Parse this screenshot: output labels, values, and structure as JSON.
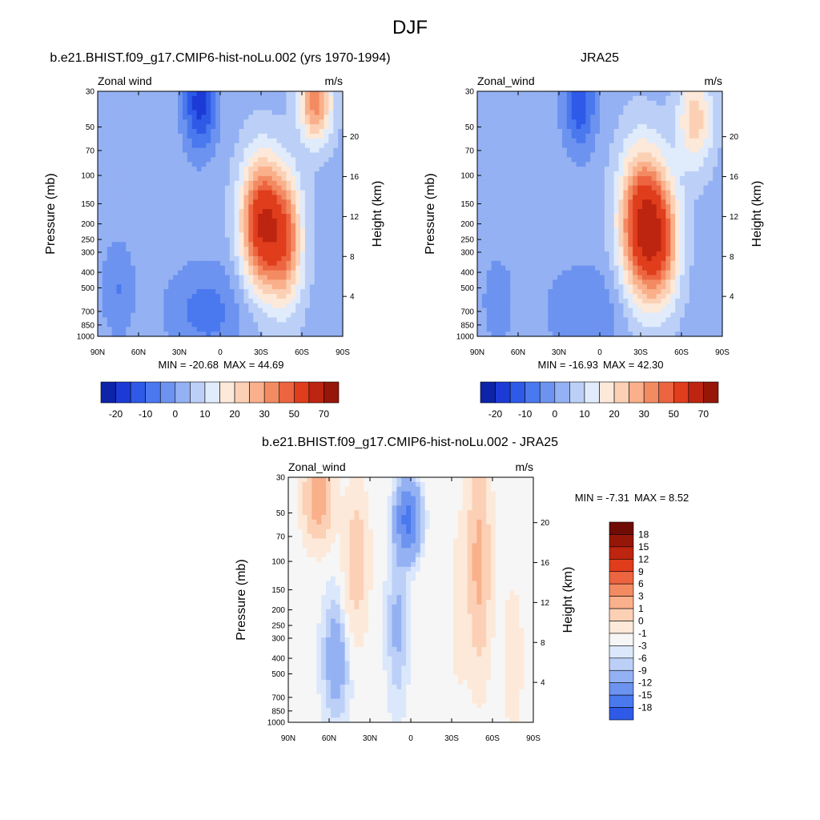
{
  "figure": {
    "title": "DJF"
  },
  "colors": {
    "abs_palette": [
      "#0a0a78",
      "#0d23a8",
      "#1c3bd6",
      "#2f5ae8",
      "#4a78ee",
      "#6d93f0",
      "#94b1f3",
      "#bcd0f7",
      "#e0ebfb",
      "#fde9d9",
      "#fbd0b5",
      "#f9b08b",
      "#f38b62",
      "#ec6540",
      "#df3d1c",
      "#bd2510",
      "#961608",
      "#6e0c05"
    ],
    "diff_palette": [
      "#0a0a78",
      "#0d23a8",
      "#1c3bd6",
      "#2f5ae8",
      "#4a78ee",
      "#6d93f0",
      "#94b1f3",
      "#bcd0f7",
      "#dbe7fb",
      "#f6f6f6",
      "#fde9d9",
      "#fbd0b5",
      "#f9b08b",
      "#f38b62",
      "#ec6540",
      "#df3d1c",
      "#bd2510",
      "#961608",
      "#6e0c05"
    ]
  },
  "chart_data": [
    {
      "type": "heatmap",
      "title": "b.e21.BHIST.f09_g17.CMIP6-hist-noLu.002 (yrs 1970-1994)",
      "variable": "Zonal wind",
      "units": "m/s",
      "xlabel": "",
      "ylabel": "Pressure (mb)",
      "ylabel_right": "Height (km)",
      "x_ticks": [
        "90N",
        "60N",
        "30N",
        "0",
        "30S",
        "60S",
        "90S"
      ],
      "y_ticks": [
        30,
        50,
        70,
        100,
        150,
        200,
        250,
        300,
        400,
        500,
        700,
        850,
        1000
      ],
      "y_ticks_right": [
        4,
        8,
        12,
        16,
        20
      ],
      "y_scale": "log",
      "min_label": "MIN = -20.68",
      "max_label": "MAX =  44.69",
      "min": -20.68,
      "max": 44.69,
      "colorbar": {
        "orientation": "horizontal",
        "tick_labels": [
          "-20",
          "-10",
          "0",
          "10",
          "20",
          "30",
          "50",
          "70"
        ]
      },
      "levels": [
        -25,
        -20,
        -15,
        -10,
        -5,
        0,
        5,
        10,
        15,
        20,
        25,
        30,
        35,
        40,
        50,
        60,
        70
      ],
      "features": [
        {
          "lat": -30,
          "p": 200,
          "value": 44.69,
          "width_lat": 15,
          "width_logp": 0.4
        },
        {
          "lat": -48,
          "p": 250,
          "value": 30,
          "width_lat": 13,
          "width_logp": 0.4
        },
        {
          "lat": -70,
          "p": 35,
          "value": 30,
          "width_lat": 12,
          "width_logp": 0.25
        },
        {
          "lat": 15,
          "p": 35,
          "value": -20.68,
          "width_lat": 12,
          "width_logp": 0.3
        },
        {
          "lat": 10,
          "p": 700,
          "value": -10,
          "width_lat": 30,
          "width_logp": 0.3
        },
        {
          "lat": 75,
          "p": 500,
          "value": -8,
          "width_lat": 12,
          "width_logp": 0.3
        }
      ]
    },
    {
      "type": "heatmap",
      "title": "JRA25",
      "variable": "Zonal_wind",
      "units": "m/s",
      "xlabel": "",
      "ylabel": "Pressure (mb)",
      "ylabel_right": "Height (km)",
      "x_ticks": [
        "90N",
        "60N",
        "30N",
        "0",
        "30S",
        "60S",
        "90S"
      ],
      "y_ticks": [
        30,
        50,
        70,
        100,
        150,
        200,
        250,
        300,
        400,
        500,
        700,
        850,
        1000
      ],
      "y_ticks_right": [
        4,
        8,
        12,
        16,
        20
      ],
      "y_scale": "log",
      "min_label": "MIN = -16.93",
      "max_label": "MAX =  42.30",
      "min": -16.93,
      "max": 42.3,
      "colorbar": {
        "orientation": "horizontal",
        "tick_labels": [
          "-20",
          "-10",
          "0",
          "10",
          "20",
          "30",
          "50",
          "70"
        ]
      },
      "levels": [
        -25,
        -20,
        -15,
        -10,
        -5,
        0,
        5,
        10,
        15,
        20,
        25,
        30,
        35,
        40,
        50,
        60,
        70
      ],
      "features": [
        {
          "lat": -30,
          "p": 200,
          "value": 42.3,
          "width_lat": 16,
          "width_logp": 0.45
        },
        {
          "lat": -45,
          "p": 250,
          "value": 30,
          "width_lat": 14,
          "width_logp": 0.4
        },
        {
          "lat": -70,
          "p": 45,
          "value": 20,
          "width_lat": 13,
          "width_logp": 0.3
        },
        {
          "lat": 15,
          "p": 35,
          "value": -16.93,
          "width_lat": 12,
          "width_logp": 0.3
        },
        {
          "lat": 10,
          "p": 700,
          "value": -8,
          "width_lat": 30,
          "width_logp": 0.3
        },
        {
          "lat": 75,
          "p": 600,
          "value": -6,
          "width_lat": 12,
          "width_logp": 0.3
        }
      ]
    },
    {
      "type": "heatmap",
      "title": "b.e21.BHIST.f09_g17.CMIP6-hist-noLu.002 - JRA25",
      "variable": "Zonal_wind",
      "units": "m/s",
      "xlabel": "",
      "ylabel": "Pressure (mb)",
      "ylabel_right": "Height (km)",
      "x_ticks": [
        "90N",
        "60N",
        "30N",
        "0",
        "30S",
        "60S",
        "90S"
      ],
      "y_ticks": [
        30,
        50,
        70,
        100,
        150,
        200,
        250,
        300,
        400,
        500,
        700,
        850,
        1000
      ],
      "y_ticks_right": [
        4,
        8,
        12,
        16,
        20
      ],
      "y_scale": "log",
      "min_label": "MIN =  -7.31",
      "max_label": "MAX =   8.52",
      "min": -7.31,
      "max": 8.52,
      "colorbar": {
        "orientation": "vertical",
        "tick_labels": [
          "18",
          "15",
          "12",
          "9",
          "6",
          "3",
          "1",
          "0",
          "-1",
          "-3",
          "-6",
          "-9",
          "-12",
          "-15",
          "-18"
        ]
      },
      "levels": [
        -18,
        -15,
        -12,
        -9,
        -6,
        -3,
        -1,
        -0.5,
        0,
        1,
        3,
        6,
        9,
        12,
        15,
        18
      ],
      "features": [
        {
          "lat": 68,
          "p": 40,
          "value": 8.52,
          "width_lat": 10,
          "width_logp": 0.25
        },
        {
          "lat": 40,
          "p": 100,
          "value": 5,
          "width_lat": 8,
          "width_logp": 0.4
        },
        {
          "lat": -50,
          "p": 100,
          "value": 7,
          "width_lat": 8,
          "width_logp": 0.6
        },
        {
          "lat": 2,
          "p": 55,
          "value": -7.31,
          "width_lat": 8,
          "width_logp": 0.2
        },
        {
          "lat": 55,
          "p": 400,
          "value": -2,
          "width_lat": 10,
          "width_logp": 0.4
        },
        {
          "lat": 10,
          "p": 250,
          "value": -1.5,
          "width_lat": 8,
          "width_logp": 0.5
        },
        {
          "lat": -75,
          "p": 400,
          "value": 1.5,
          "width_lat": 8,
          "width_logp": 0.5
        },
        {
          "lat": -35,
          "p": 200,
          "value": 1.2,
          "width_lat": 6,
          "width_logp": 0.6
        }
      ]
    }
  ]
}
